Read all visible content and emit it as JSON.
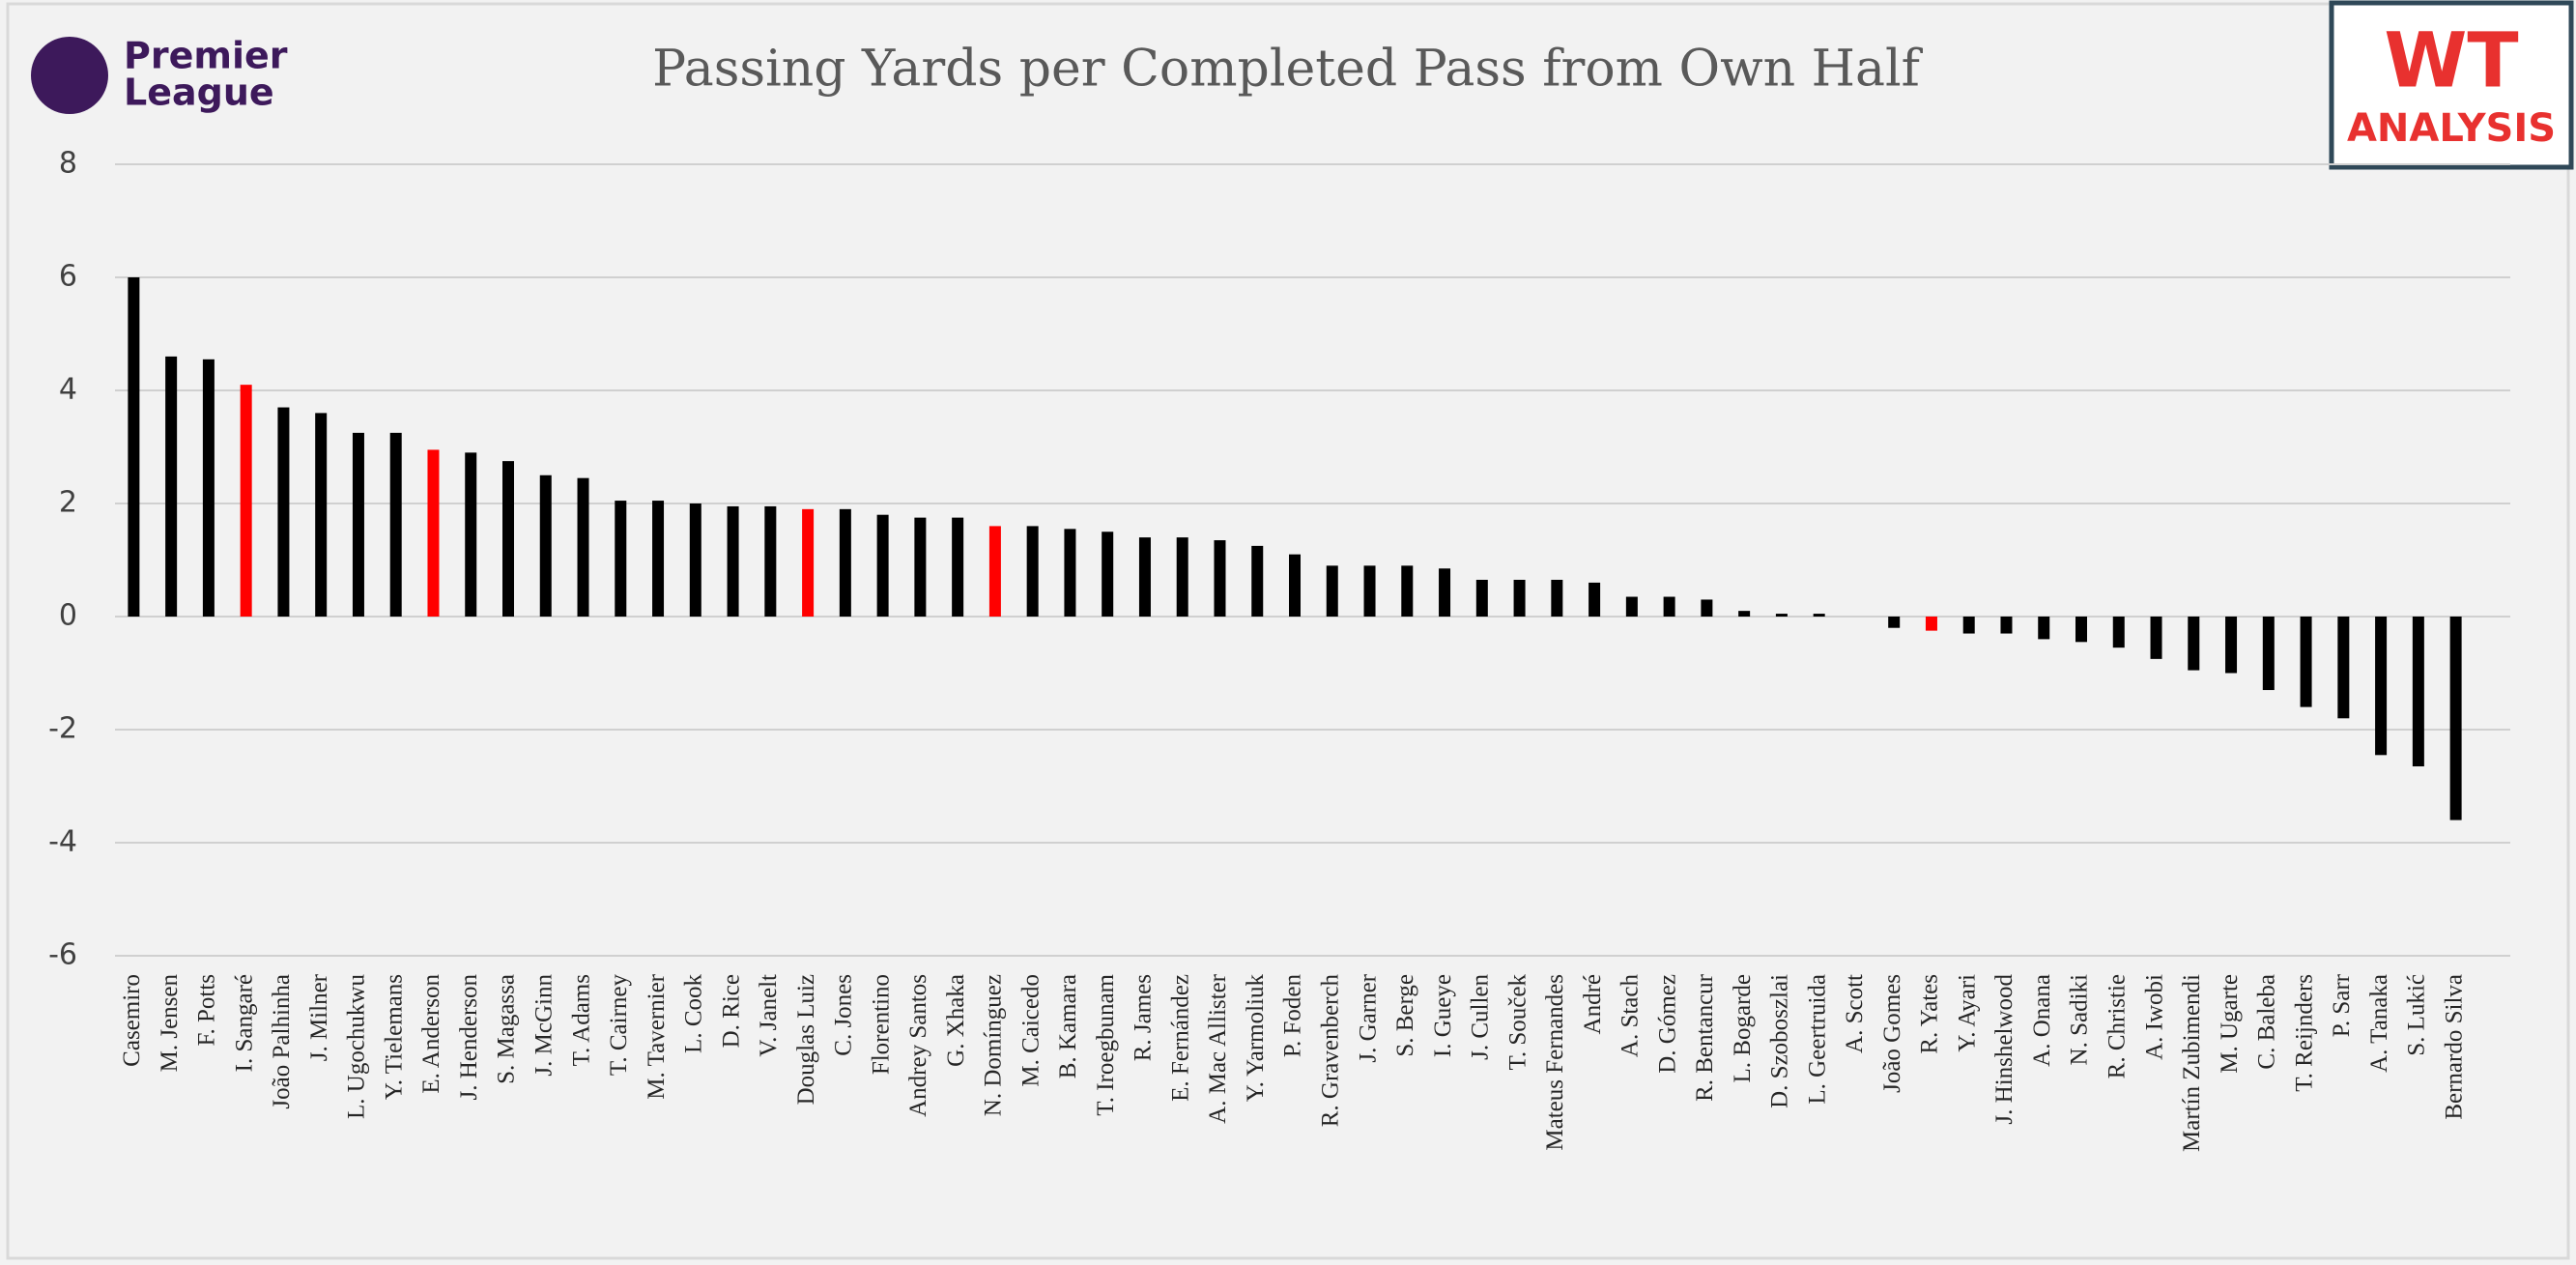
{
  "chart_data": {
    "type": "bar",
    "title": "Passing Yards per Completed Pass from Own Half",
    "logo_left": [
      "Premier",
      "League"
    ],
    "logo_right": [
      "WT",
      "ANALYSIS"
    ],
    "categories": [
      "Casemiro",
      "M. Jensen",
      "F. Potts",
      "I. Sangaré",
      "João Palhinha",
      "J. Milner",
      "L. Ugochukwu",
      "Y. Tielemans",
      "E. Anderson",
      "J. Henderson",
      "S. Magassa",
      "J. McGinn",
      "T. Adams",
      "T. Cairney",
      "M. Tavernier",
      "L. Cook",
      "D. Rice",
      "V. Janelt",
      "Douglas Luiz",
      "C. Jones",
      "Florentino",
      "Andrey Santos",
      "G. Xhaka",
      "N. Domínguez",
      "M. Caicedo",
      "B. Kamara",
      "T. Iroegbunam",
      "R. James",
      "E. Fernández",
      "A. Mac Allister",
      "Y. Yarmoliuk",
      "P. Foden",
      "R. Gravenberch",
      "J. Garner",
      "S. Berge",
      "I. Gueye",
      "J. Cullen",
      "T. Souček",
      "Mateus Fernandes",
      "André",
      "A. Stach",
      "D. Gómez",
      "R. Bentancur",
      "L. Bogarde",
      "D. Szoboszlai",
      "L. Geertruida",
      "A. Scott",
      "João Gomes",
      "R. Yates",
      "Y. Ayari",
      "J. Hinshelwood",
      "A. Onana",
      "N. Sadiki",
      "R. Christie",
      "A. Iwobi",
      "Martín Zubimendi",
      "M. Ugarte",
      "C. Baleba",
      "T. Reijnders",
      "P. Sarr",
      "A. Tanaka",
      "S. Lukić",
      "Bernardo Silva"
    ],
    "values": [
      6.0,
      4.6,
      4.55,
      4.1,
      3.7,
      3.6,
      3.25,
      3.25,
      2.95,
      2.9,
      2.75,
      2.5,
      2.45,
      2.05,
      2.05,
      2.0,
      1.95,
      1.95,
      1.9,
      1.9,
      1.8,
      1.75,
      1.75,
      1.6,
      1.6,
      1.55,
      1.5,
      1.4,
      1.4,
      1.35,
      1.25,
      1.1,
      0.9,
      0.9,
      0.9,
      0.85,
      0.65,
      0.65,
      0.65,
      0.6,
      0.35,
      0.35,
      0.3,
      0.1,
      0.05,
      0.05,
      0,
      -0.2,
      -0.25,
      -0.3,
      -0.3,
      -0.4,
      -0.45,
      -0.55,
      -0.75,
      -0.95,
      -1.0,
      -1.3,
      -1.6,
      -1.8,
      -2.45,
      -2.65,
      -3.6
    ],
    "colors": [
      "#000000",
      "#000000",
      "#000000",
      "#ff0000",
      "#000000",
      "#000000",
      "#000000",
      "#000000",
      "#ff0000",
      "#000000",
      "#000000",
      "#000000",
      "#000000",
      "#000000",
      "#000000",
      "#000000",
      "#000000",
      "#000000",
      "#ff0000",
      "#000000",
      "#000000",
      "#000000",
      "#000000",
      "#ff0000",
      "#000000",
      "#000000",
      "#000000",
      "#000000",
      "#000000",
      "#000000",
      "#000000",
      "#000000",
      "#000000",
      "#000000",
      "#000000",
      "#000000",
      "#000000",
      "#000000",
      "#000000",
      "#000000",
      "#000000",
      "#000000",
      "#000000",
      "#000000",
      "#000000",
      "#000000",
      "#000000",
      "#000000",
      "#ff0000",
      "#000000",
      "#000000",
      "#000000",
      "#000000",
      "#000000",
      "#000000",
      "#000000",
      "#000000",
      "#000000",
      "#000000",
      "#000000",
      "#000000",
      "#000000",
      "#000000"
    ],
    "ylim": [
      -6,
      8
    ],
    "yticks": [
      -6,
      -4,
      -2,
      0,
      2,
      4,
      6,
      8
    ],
    "grid": true
  }
}
